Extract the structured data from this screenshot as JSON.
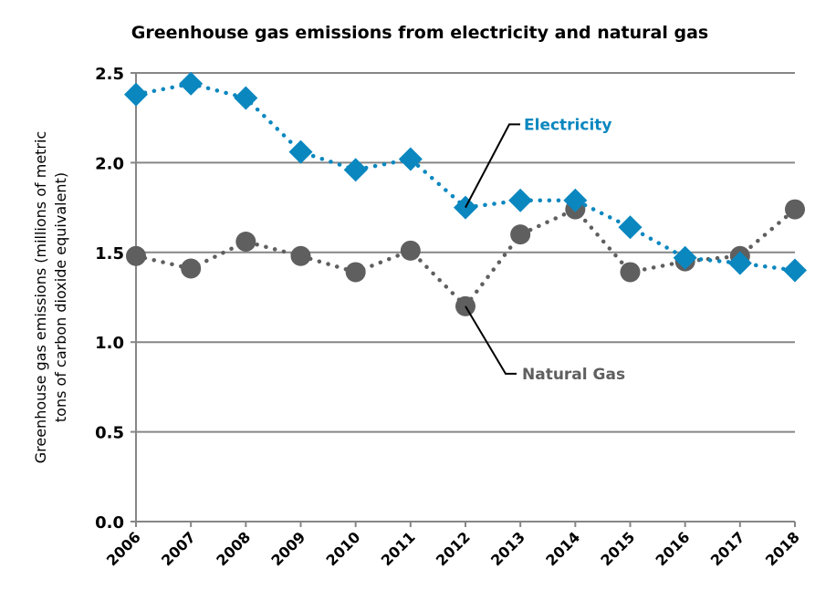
{
  "chart_data": {
    "type": "line",
    "title": "Greenhouse gas emissions from electricity and natural gas",
    "xlabel": "",
    "ylabel_lines": [
      "Greenhouse gas emissions (millions of metric",
      "tons of carbon dioxide equivalent)"
    ],
    "ylim": [
      0,
      2.5
    ],
    "yticks": [
      "0.0",
      "0.5",
      "1.0",
      "1.5",
      "2.0",
      "2.5"
    ],
    "ytick_values": [
      0,
      0.5,
      1.0,
      1.5,
      2.0,
      2.5
    ],
    "grid": true,
    "legend": "inline-annotations",
    "categories": [
      "2006",
      "2007",
      "2008",
      "2009",
      "2010",
      "2011",
      "2012",
      "2013",
      "2014",
      "2015",
      "2016",
      "2017",
      "2018"
    ],
    "series": [
      {
        "name": "Electricity",
        "color": "#0a87bf",
        "marker": "diamond",
        "line_style": "dotted",
        "values": [
          2.38,
          2.44,
          2.36,
          2.06,
          1.96,
          2.02,
          1.75,
          1.79,
          1.79,
          1.64,
          1.47,
          1.44,
          1.4
        ],
        "annotation": {
          "text": "Electricity",
          "points_to": "2012"
        }
      },
      {
        "name": "Natural Gas",
        "color": "#5f5f5f",
        "marker": "circle",
        "line_style": "dotted",
        "values": [
          1.48,
          1.41,
          1.56,
          1.48,
          1.39,
          1.51,
          1.2,
          1.6,
          1.74,
          1.39,
          1.45,
          1.48,
          1.74
        ],
        "annotation": {
          "text": "Natural Gas",
          "points_to": "2012"
        }
      }
    ]
  }
}
